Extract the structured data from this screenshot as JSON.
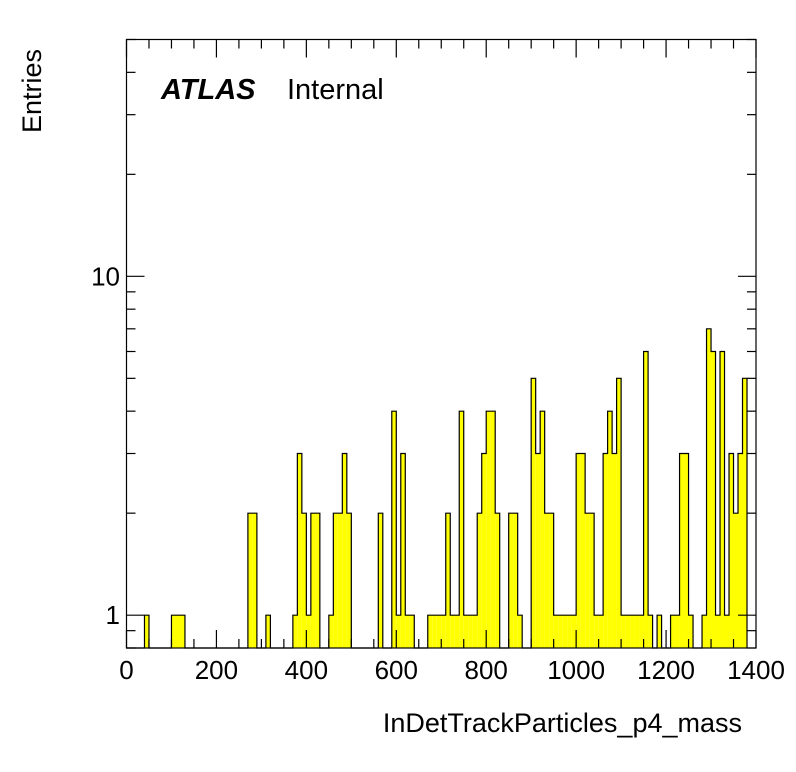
{
  "chart_data": {
    "type": "bar",
    "style": "histogram",
    "fill_color": "#ffff00",
    "line_color": "#000000",
    "xlabel": "InDetTrackParticles_p4_mass",
    "ylabel": "Entries",
    "label": {
      "experiment": "ATLAS",
      "status": "Internal"
    },
    "x_scale": "linear",
    "y_scale": "log",
    "xlim": [
      0,
      1400
    ],
    "ylim": [
      0.8,
      50
    ],
    "x_ticks": [
      "0",
      "200",
      "400",
      "600",
      "800",
      "1000",
      "1200",
      "1400"
    ],
    "y_ticks": [
      "1",
      "10"
    ],
    "bin_width": 10,
    "bin_edges_start": 0,
    "bin_counts": [
      0,
      0,
      0,
      0,
      1,
      0,
      0,
      0,
      0,
      0,
      1,
      1,
      1,
      0,
      0,
      0,
      0,
      0,
      0,
      0,
      0,
      0,
      0,
      0,
      0,
      0,
      0,
      2,
      2,
      0,
      0,
      1,
      0,
      0,
      0,
      0,
      0,
      1,
      3,
      2,
      1,
      2,
      2,
      0,
      0,
      1,
      2,
      2,
      3,
      2,
      0,
      0,
      0,
      0,
      0,
      0,
      2,
      0,
      0,
      4,
      1,
      3,
      1,
      1,
      0,
      0,
      0,
      1,
      1,
      1,
      1,
      2,
      1,
      1,
      4,
      1,
      1,
      1,
      2,
      3,
      4,
      4,
      2,
      0,
      0,
      2,
      2,
      1,
      0,
      0,
      5,
      3,
      4,
      2,
      2,
      1,
      1,
      1,
      1,
      1,
      3,
      3,
      2,
      2,
      1,
      1,
      3,
      4,
      3,
      5,
      1,
      1,
      1,
      1,
      1,
      6,
      1,
      0,
      1,
      0,
      0,
      1,
      1,
      3,
      3,
      1,
      0,
      0,
      1,
      7,
      6,
      1,
      6,
      1,
      3,
      2,
      3,
      5
    ]
  }
}
